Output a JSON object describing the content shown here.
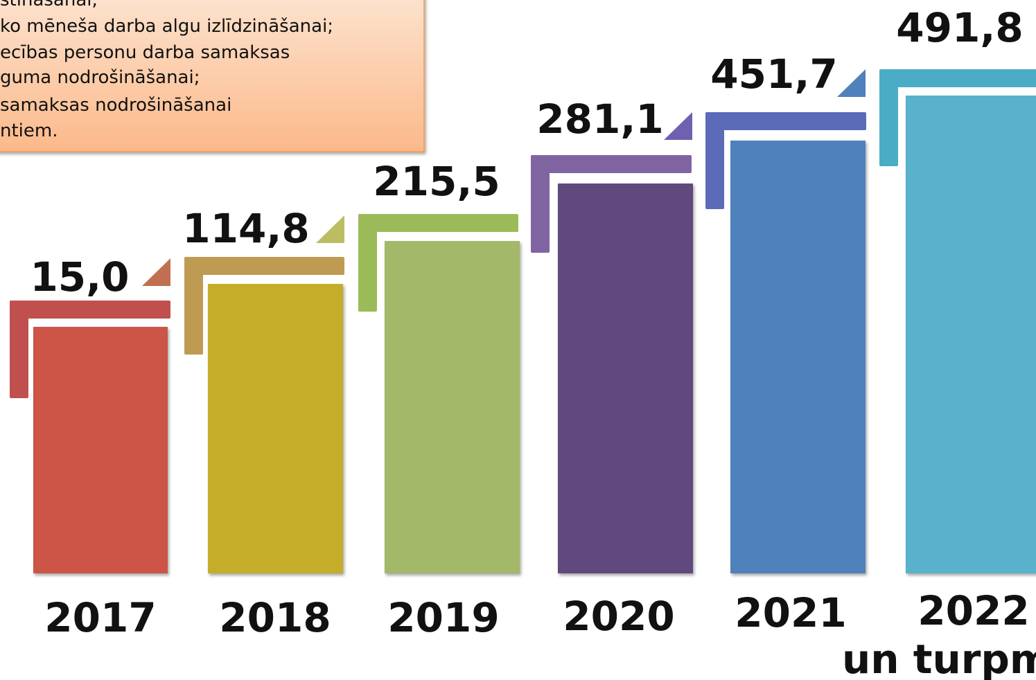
{
  "note": {
    "lines": [
      "stināšanai;",
      "ko mēneša darba algu izlīdzināšanai;",
      "ecības personu darba samaksas",
      "guma nodrošināšanai;",
      " samaksas nodrošināšanai",
      "ntiem."
    ]
  },
  "items": [
    {
      "value": "15,0",
      "year": "2017"
    },
    {
      "value": "114,8",
      "year": "2018"
    },
    {
      "value": "215,5",
      "year": "2019"
    },
    {
      "value": "281,1",
      "year": "2020"
    },
    {
      "value": "451,7",
      "year": "2021"
    },
    {
      "value": "491,8",
      "year": "2022",
      "year_note": "un turpm"
    }
  ]
}
